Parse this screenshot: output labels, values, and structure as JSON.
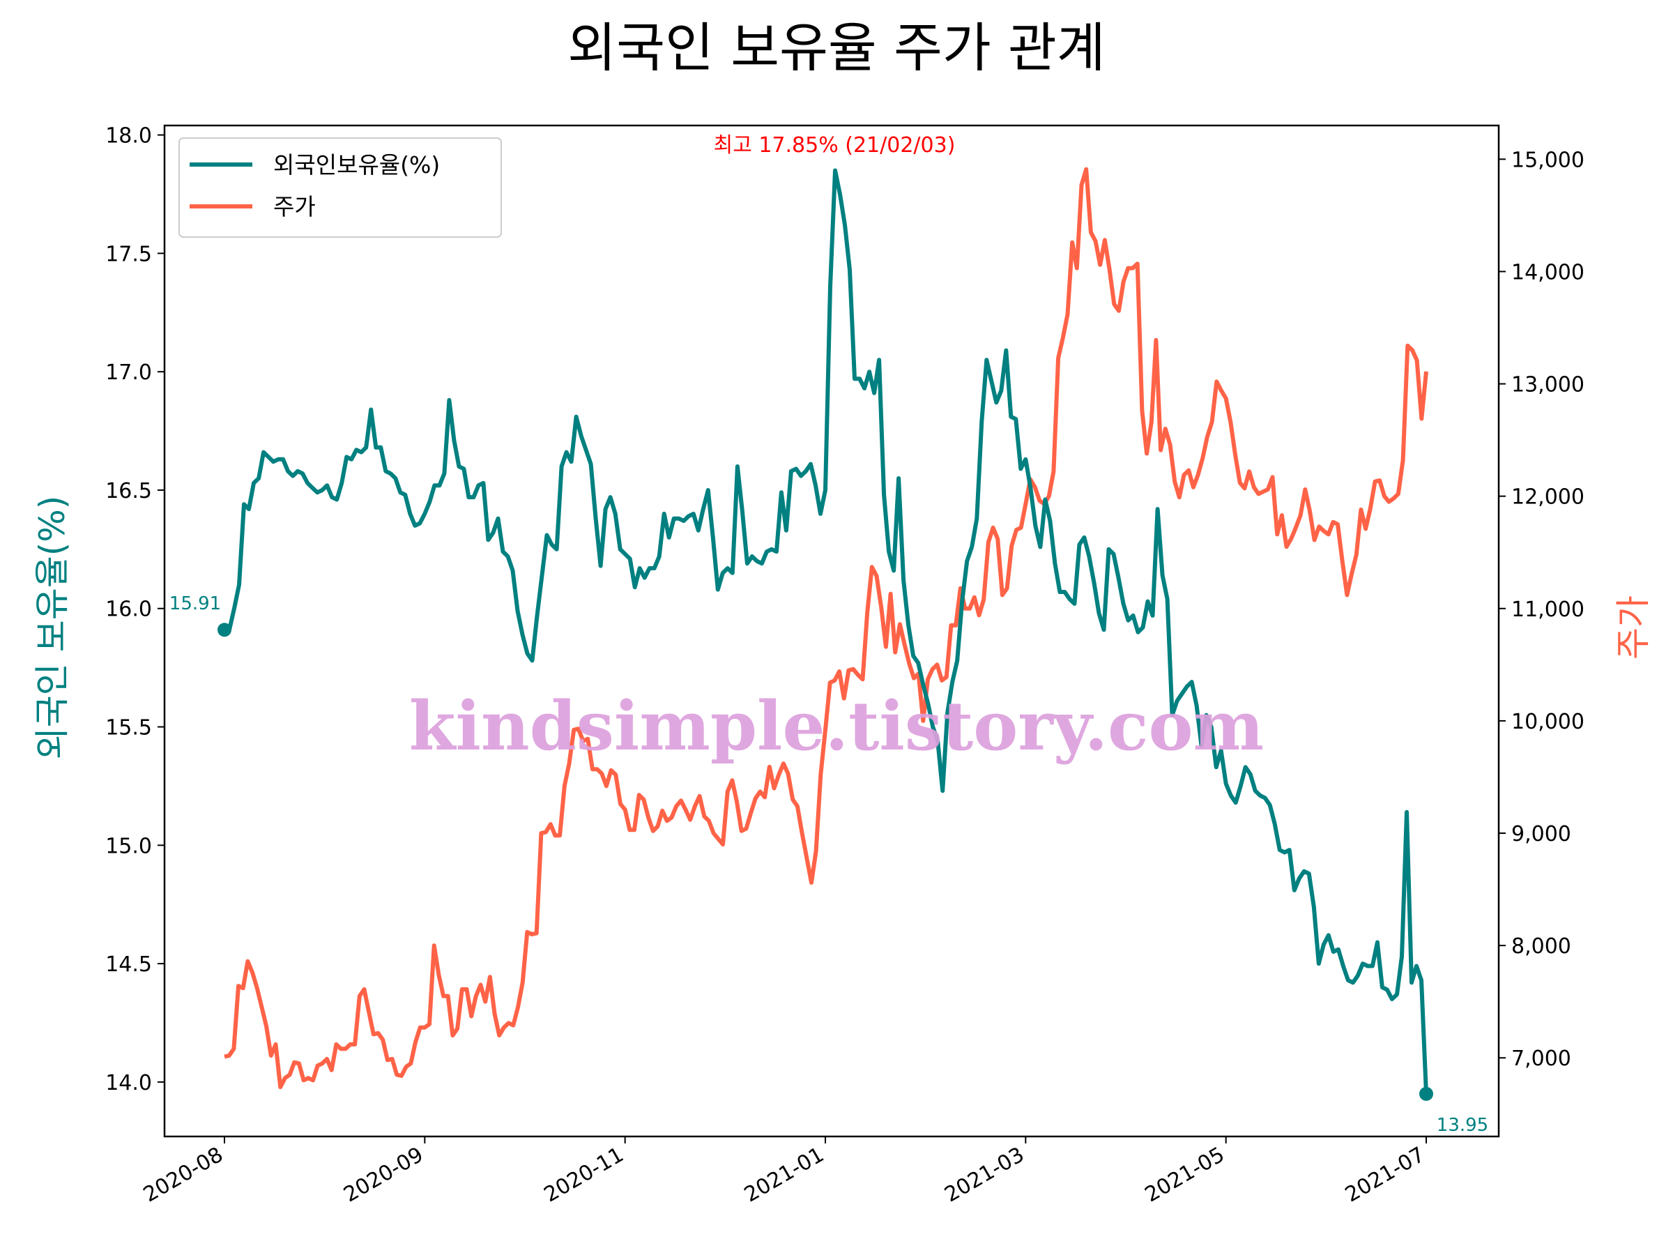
{
  "chart_data": {
    "type": "line",
    "title": "외국인 보유율 주가 관계",
    "xlabel": "",
    "ylabel_left": "외국인 보유율(%)",
    "ylabel_right": "주가",
    "ylim_left": [
      13.77,
      18.04
    ],
    "ylim_right": [
      6300,
      15300
    ],
    "yticks_left": [
      "14.0",
      "14.5",
      "15.0",
      "15.5",
      "16.0",
      "16.5",
      "17.0",
      "17.5",
      "18.0"
    ],
    "yticks_right": [
      "7,000",
      "8,000",
      "9,000",
      "10,000",
      "11,000",
      "12,000",
      "13,000",
      "14,000",
      "15,000"
    ],
    "xtick_labels": [
      "2020-08",
      "2020-09",
      "2020-11",
      "2021-01",
      "2021-03",
      "2021-05",
      "2021-07"
    ],
    "legend": {
      "position": "top-left",
      "entries": [
        "외국인보유율(%)",
        "주가"
      ]
    },
    "annotations": {
      "max_label": "최고 17.85% (21/02/03)",
      "start_label": "15.91",
      "end_label": "13.95"
    },
    "watermark": "kindsimple.tistory.com",
    "colors": {
      "foreign": "#008080",
      "price": "#ff6347",
      "max": "#ff0000",
      "watermark": "#dda0dd"
    },
    "series": [
      {
        "name": "외국인보유율(%)",
        "axis": "left",
        "values": [
          15.91,
          15.91,
          16.0,
          16.1,
          16.44,
          16.42,
          16.53,
          16.55,
          16.66,
          16.64,
          16.62,
          16.63,
          16.63,
          16.58,
          16.56,
          16.58,
          16.57,
          16.53,
          16.51,
          16.49,
          16.5,
          16.52,
          16.47,
          16.46,
          16.53,
          16.64,
          16.63,
          16.67,
          16.66,
          16.68,
          16.84,
          16.68,
          16.68,
          16.58,
          16.57,
          16.55,
          16.49,
          16.48,
          16.4,
          16.35,
          16.36,
          16.4,
          16.45,
          16.52,
          16.52,
          16.57,
          16.88,
          16.71,
          16.6,
          16.59,
          16.47,
          16.47,
          16.52,
          16.53,
          16.29,
          16.32,
          16.38,
          16.24,
          16.22,
          16.16,
          15.99,
          15.89,
          15.81,
          15.78,
          15.97,
          16.14,
          16.31,
          16.27,
          16.25,
          16.6,
          16.66,
          16.62,
          16.81,
          16.73,
          16.67,
          16.61,
          16.38,
          16.18,
          16.42,
          16.47,
          16.4,
          16.25,
          16.23,
          16.21,
          16.09,
          16.17,
          16.13,
          16.17,
          16.17,
          16.22,
          16.4,
          16.3,
          16.38,
          16.38,
          16.37,
          16.39,
          16.4,
          16.33,
          16.42,
          16.5,
          16.3,
          16.08,
          16.15,
          16.17,
          16.15,
          16.6,
          16.41,
          16.19,
          16.22,
          16.2,
          16.19,
          16.24,
          16.25,
          16.24,
          16.49,
          16.33,
          16.58,
          16.59,
          16.56,
          16.58,
          16.61,
          16.52,
          16.4,
          16.5,
          17.36,
          17.85,
          17.75,
          17.62,
          17.43,
          16.97,
          16.97,
          16.93,
          17.0,
          16.91,
          17.05,
          16.48,
          16.24,
          16.16,
          16.55,
          16.12,
          15.93,
          15.8,
          15.77,
          15.68,
          15.6,
          15.5,
          15.44,
          15.23,
          15.56,
          15.69,
          15.78,
          16.03,
          16.2,
          16.26,
          16.38,
          16.79,
          17.05,
          16.96,
          16.87,
          16.92,
          17.09,
          16.81,
          16.8,
          16.59,
          16.63,
          16.51,
          16.35,
          16.26,
          16.46,
          16.37,
          16.19,
          16.07,
          16.07,
          16.04,
          16.02,
          16.27,
          16.3,
          16.22,
          16.11,
          15.98,
          15.91,
          16.25,
          16.23,
          16.13,
          16.02,
          15.95,
          15.97,
          15.9,
          15.92,
          16.03,
          15.97,
          16.42,
          16.14,
          16.04,
          15.55,
          15.61,
          15.64,
          15.67,
          15.69,
          15.59,
          15.42,
          15.55,
          15.5,
          15.33,
          15.4,
          15.26,
          15.21,
          15.18,
          15.25,
          15.33,
          15.3,
          15.23,
          15.21,
          15.2,
          15.17,
          15.09,
          14.98,
          14.97,
          14.98,
          14.81,
          14.86,
          14.89,
          14.88,
          14.74,
          14.5,
          14.58,
          14.62,
          14.55,
          14.56,
          14.49,
          14.43,
          14.42,
          14.45,
          14.5,
          14.49,
          14.49,
          14.59,
          14.4,
          14.39,
          14.35,
          14.37,
          14.53,
          15.14,
          14.42,
          14.49,
          14.43,
          13.95
        ]
      },
      {
        "name": "주가",
        "axis": "right",
        "values": [
          7010,
          7020,
          7080,
          7640,
          7620,
          7860,
          7760,
          7620,
          7450,
          7280,
          7020,
          7120,
          6740,
          6820,
          6850,
          6960,
          6950,
          6800,
          6820,
          6800,
          6930,
          6950,
          6990,
          6890,
          7120,
          7080,
          7080,
          7120,
          7120,
          7550,
          7610,
          7410,
          7210,
          7220,
          7160,
          6980,
          6990,
          6850,
          6840,
          6920,
          6950,
          7140,
          7270,
          7270,
          7300,
          8000,
          7740,
          7550,
          7550,
          7200,
          7260,
          7610,
          7610,
          7370,
          7550,
          7650,
          7500,
          7720,
          7390,
          7200,
          7270,
          7310,
          7290,
          7450,
          7670,
          8120,
          8100,
          8110,
          9000,
          9010,
          9080,
          8980,
          8980,
          9420,
          9620,
          9920,
          9930,
          9820,
          9840,
          9570,
          9570,
          9530,
          9420,
          9560,
          9520,
          9260,
          9210,
          9030,
          9030,
          9340,
          9300,
          9140,
          9020,
          9060,
          9200,
          9110,
          9140,
          9240,
          9290,
          9210,
          9120,
          9240,
          9330,
          9150,
          9110,
          9000,
          8950,
          8900,
          9370,
          9470,
          9280,
          9020,
          9040,
          9180,
          9310,
          9370,
          9320,
          9590,
          9400,
          9520,
          9620,
          9530,
          9300,
          9240,
          9000,
          8780,
          8560,
          8840,
          9520,
          9920,
          10340,
          10360,
          10440,
          10200,
          10450,
          10460,
          10410,
          10370,
          10960,
          11370,
          11290,
          11010,
          10660,
          11130,
          10610,
          10860,
          10680,
          10510,
          10380,
          10420,
          10000,
          10370,
          10460,
          10500,
          10360,
          10390,
          10850,
          10850,
          11180,
          11000,
          11000,
          11100,
          10940,
          11080,
          11590,
          11720,
          11620,
          11120,
          11180,
          11560,
          11700,
          11720,
          11930,
          12150,
          12080,
          11960,
          11930,
          12000,
          12220,
          13230,
          13410,
          13620,
          14260,
          14030,
          14770,
          14910,
          14350,
          14270,
          14060,
          14280,
          14020,
          13710,
          13650,
          13910,
          14030,
          14030,
          14070,
          12760,
          12380,
          12660,
          13390,
          12410,
          12600,
          12460,
          12130,
          11990,
          12190,
          12230,
          12080,
          12190,
          12340,
          12530,
          12660,
          13020,
          12940,
          12870,
          12660,
          12370,
          12120,
          12070,
          12220,
          12080,
          12020,
          12040,
          12060,
          12170,
          11660,
          11830,
          11550,
          11620,
          11720,
          11830,
          12060,
          11870,
          11610,
          11730,
          11690,
          11660,
          11770,
          11750,
          11420,
          11120,
          11310,
          11480,
          11880,
          11710,
          11890,
          12130,
          12140,
          12000,
          11950,
          11980,
          12020,
          12320,
          13340,
          13300,
          13210,
          12690,
          13110
        ]
      }
    ]
  }
}
